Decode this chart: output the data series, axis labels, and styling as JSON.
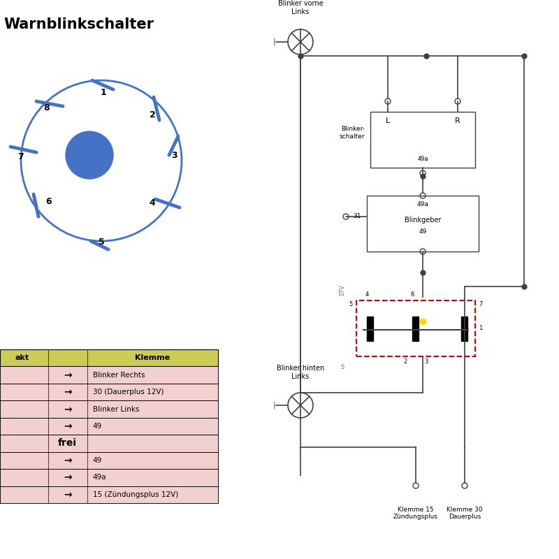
{
  "title": "Warnblinkschalter",
  "bg_color": "#FFFFFF",
  "circle_color": "#4472C4",
  "circuit_color": "#404040",
  "dashed_box_color": "#CC0000",
  "yellow_dot_color": "#FFD700",
  "header_bg": "#CCCC55",
  "row_bg": "#F2D0D0",
  "table_rows": [
    [
      "→",
      "Blinker Rechts"
    ],
    [
      "→",
      "30 (Dauerplus 12V)"
    ],
    [
      "→",
      "Blinker Links"
    ],
    [
      "→",
      "49"
    ],
    [
      "frei",
      ""
    ],
    [
      "→",
      "49"
    ],
    [
      "→",
      "49a"
    ],
    [
      "→",
      "15 (Zündungsplus 12V)"
    ]
  ]
}
